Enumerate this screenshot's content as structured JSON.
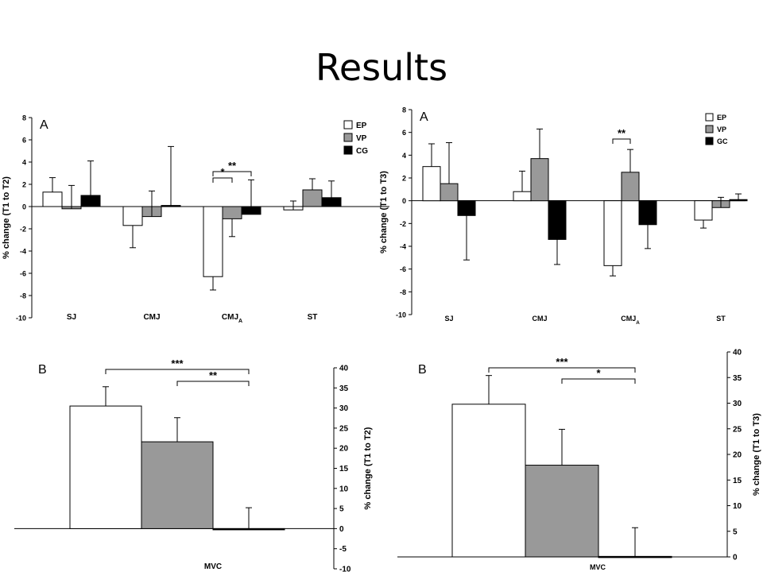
{
  "slide": {
    "title": "Results"
  },
  "chart_data": [
    {
      "type": "bar",
      "panel": "A",
      "ylabel": "% change (T1 to T2)",
      "ylim": [
        -10,
        8
      ],
      "yticks": [
        -10,
        -8,
        -6,
        -4,
        -2,
        0,
        2,
        4,
        6,
        8
      ],
      "categories": [
        "SJ",
        "CMJ",
        "CMJ_A",
        "ST"
      ],
      "series": [
        {
          "name": "EP",
          "color": "#ffffff",
          "values": [
            1.3,
            -1.7,
            -6.3,
            -0.3
          ],
          "err": [
            1.3,
            2.0,
            1.2,
            0.8
          ]
        },
        {
          "name": "VP",
          "color": "#999999",
          "values": [
            -0.2,
            -0.9,
            -1.1,
            1.5
          ],
          "err": [
            2.1,
            2.3,
            1.6,
            1.0
          ]
        },
        {
          "name": "CG",
          "color": "#000000",
          "values": [
            1.0,
            0.1,
            -0.7,
            0.8
          ],
          "err": [
            3.1,
            5.3,
            3.1,
            1.5
          ]
        }
      ],
      "legend_position": "top-right",
      "annotations": [
        {
          "category": "CMJ_A",
          "from": "EP",
          "to": "VP",
          "label": "*"
        },
        {
          "category": "CMJ_A",
          "from": "EP",
          "to": "CG",
          "label": "**"
        }
      ]
    },
    {
      "type": "bar",
      "panel": "A",
      "ylabel": "% change (T1 to T3)",
      "ylim": [
        -10,
        8
      ],
      "yticks": [
        -10,
        -8,
        -6,
        -4,
        -2,
        0,
        2,
        4,
        6,
        8
      ],
      "categories": [
        "SJ",
        "CMJ",
        "CMJ_A",
        "ST"
      ],
      "series": [
        {
          "name": "EP",
          "color": "#ffffff",
          "values": [
            3.0,
            0.8,
            -5.7,
            -1.7
          ],
          "err": [
            2.0,
            1.8,
            0.9,
            0.7
          ]
        },
        {
          "name": "VP",
          "color": "#999999",
          "values": [
            1.5,
            3.7,
            2.5,
            -0.6
          ],
          "err": [
            3.6,
            2.6,
            2.0,
            0.9
          ]
        },
        {
          "name": "GC",
          "color": "#000000",
          "values": [
            -1.3,
            -3.4,
            -2.1,
            0.1
          ],
          "err": [
            3.9,
            2.2,
            2.1,
            0.5
          ]
        }
      ],
      "legend_position": "top-right",
      "annotations": [
        {
          "category": "CMJ_A",
          "from": "EP",
          "to": "VP",
          "label": "**"
        }
      ]
    },
    {
      "type": "bar",
      "panel": "B",
      "ylabel": "% change (T1 to T2)",
      "ylim": [
        -10,
        40
      ],
      "yticks": [
        -10,
        -5,
        0,
        5,
        10,
        15,
        20,
        25,
        30,
        35,
        40
      ],
      "categories": [
        "MVC"
      ],
      "series": [
        {
          "name": "EP",
          "color": "#ffffff",
          "values": [
            30.5
          ],
          "err": [
            4.8
          ]
        },
        {
          "name": "VP",
          "color": "#999999",
          "values": [
            21.6
          ],
          "err": [
            6.0
          ]
        },
        {
          "name": "CG",
          "color": "#000000",
          "values": [
            -0.2
          ],
          "err": [
            5.4
          ]
        }
      ],
      "annotations": [
        {
          "category": "MVC",
          "from": "EP",
          "to": "CG",
          "label": "***"
        },
        {
          "category": "MVC",
          "from": "VP",
          "to": "CG",
          "label": "**"
        }
      ]
    },
    {
      "type": "bar",
      "panel": "B",
      "ylabel": "% change (T1 to T3)",
      "ylim": [
        0,
        40
      ],
      "yticks": [
        0,
        5,
        10,
        15,
        20,
        25,
        30,
        35,
        40
      ],
      "categories": [
        "MVC"
      ],
      "series": [
        {
          "name": "EP",
          "color": "#ffffff",
          "values": [
            29.8
          ],
          "err": [
            5.6
          ]
        },
        {
          "name": "VP",
          "color": "#999999",
          "values": [
            17.9
          ],
          "err": [
            7.0
          ]
        },
        {
          "name": "GC",
          "color": "#000000",
          "values": [
            0.1
          ],
          "err": [
            5.6
          ]
        }
      ],
      "annotations": [
        {
          "category": "MVC",
          "from": "EP",
          "to": "GC",
          "label": "***"
        },
        {
          "category": "MVC",
          "from": "VP",
          "to": "GC",
          "label": "*"
        }
      ]
    }
  ]
}
